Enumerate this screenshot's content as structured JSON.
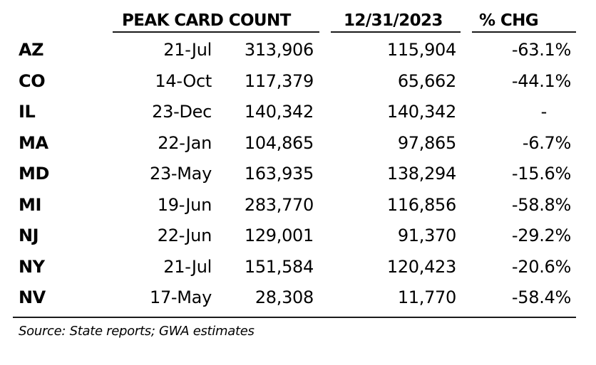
{
  "header": {
    "peak_card_count": "PEAK CARD COUNT",
    "year_end_date": "12/31/2023",
    "pct_change": "% CHG"
  },
  "rows": [
    {
      "state": "AZ",
      "peak_date": "21-Jul",
      "peak_count": "313,906",
      "year_end_count": "115,904",
      "pct_change": "-63.1%"
    },
    {
      "state": "CO",
      "peak_date": "14-Oct",
      "peak_count": "117,379",
      "year_end_count": "65,662",
      "pct_change": "-44.1%"
    },
    {
      "state": "IL",
      "peak_date": "23-Dec",
      "peak_count": "140,342",
      "year_end_count": "140,342",
      "pct_change": "-"
    },
    {
      "state": "MA",
      "peak_date": "22-Jan",
      "peak_count": "104,865",
      "year_end_count": "97,865",
      "pct_change": "-6.7%"
    },
    {
      "state": "MD",
      "peak_date": "23-May",
      "peak_count": "163,935",
      "year_end_count": "138,294",
      "pct_change": "-15.6%"
    },
    {
      "state": "MI",
      "peak_date": "19-Jun",
      "peak_count": "283,770",
      "year_end_count": "116,856",
      "pct_change": "-58.8%"
    },
    {
      "state": "NJ",
      "peak_date": "22-Jun",
      "peak_count": "129,001",
      "year_end_count": "91,370",
      "pct_change": "-29.2%"
    },
    {
      "state": "NY",
      "peak_date": "21-Jul",
      "peak_count": "151,584",
      "year_end_count": "120,423",
      "pct_change": "-20.6%"
    },
    {
      "state": "NV",
      "peak_date": "17-May",
      "peak_count": "28,308",
      "year_end_count": "11,770",
      "pct_change": "-58.4%"
    }
  ],
  "source": "Source: State reports; GWA estimates"
}
